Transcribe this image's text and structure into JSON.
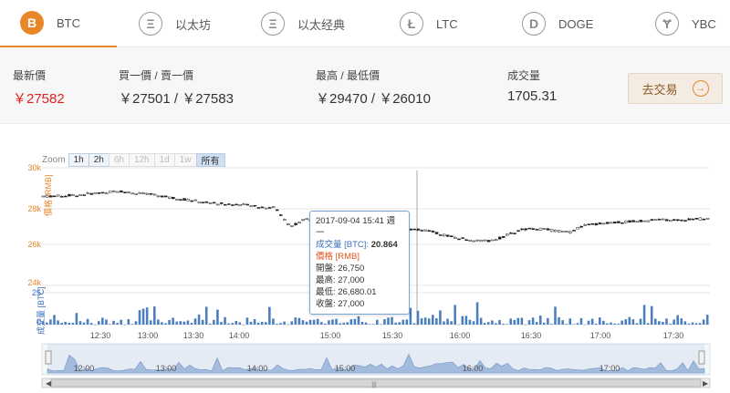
{
  "tabs": [
    {
      "icon": "B",
      "label": "BTC",
      "active": true
    },
    {
      "icon": "Ξ",
      "label": "以太坊",
      "active": false
    },
    {
      "icon": "Ξ",
      "label": "以太经典",
      "active": false
    },
    {
      "icon": "Ł",
      "label": "LTC",
      "active": false
    },
    {
      "icon": "D",
      "label": "DOGE",
      "active": false
    },
    {
      "icon": "Ɏ",
      "label": "YBC",
      "active": false
    }
  ],
  "stats": {
    "latest_label": "最新價",
    "latest_value": "￥27582",
    "bidask_label": "買一價 / 賣一價",
    "bidask_value": "￥27501 / ￥27583",
    "highlow_label": "最高 / 最低價",
    "highlow_value": "￥29470 / ￥26010",
    "volume_label": "成交量",
    "volume_value": "1705.31",
    "trade_label": "去交易",
    "accent": "#e8862a",
    "red": "#e02020"
  },
  "zoom": {
    "label": "Zoom",
    "buttons": [
      "1h",
      "2h",
      "6h",
      "12h",
      "1d",
      "1w",
      "所有"
    ],
    "disabled": [
      "6h",
      "12h",
      "1d",
      "1w"
    ],
    "selected": "所有"
  },
  "chart_data": {
    "type": "line",
    "price_axis_label": "價格 [RMB]",
    "volume_axis_label": "成交量 [BTC]",
    "price_ticks": [
      "30k",
      "28k",
      "26k",
      "24k"
    ],
    "volume_ticks": [
      "25",
      "0"
    ],
    "x_ticks": [
      "12:30",
      "13:00",
      "13:30",
      "14:00",
      "15:00",
      "15:30",
      "16:00",
      "16:30",
      "17:00",
      "17:30"
    ],
    "navigator_ticks": [
      "12:00",
      "13:00",
      "14:00",
      "15:00",
      "16:00",
      "17:00"
    ],
    "price_ylim": [
      24000,
      30000
    ],
    "price_series": [
      28550,
      28560,
      28600,
      28680,
      28750,
      28800,
      28700,
      28650,
      28500,
      28400,
      28300,
      28200,
      28150,
      28100,
      28000,
      27980,
      27000,
      27400,
      27200,
      26950,
      26800,
      27000,
      26700,
      26750,
      26900,
      26800,
      26550,
      26400,
      26300,
      26250,
      26550,
      26850,
      26900,
      26800,
      26700,
      27050,
      27150,
      27200,
      27250,
      27300,
      27350,
      27300,
      27380,
      27400
    ],
    "volume_max": 25,
    "tooltip": {
      "time": "2017-09-04 15:41 週一",
      "volume_label": "成交量 [BTC]:",
      "volume_value": "20.864",
      "price_label": "價格 [RMB]",
      "open": "開盤: 26,750",
      "high": "最高: 27,000",
      "low": "最低: 26,680.01",
      "close": "收盤: 27,000"
    }
  }
}
